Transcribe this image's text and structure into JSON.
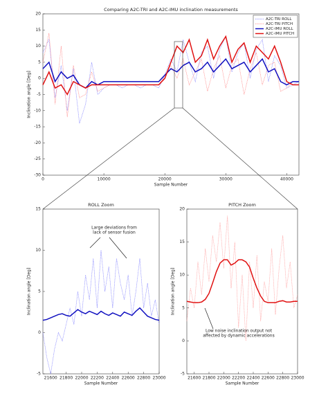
{
  "chart_data": [
    {
      "type": "line",
      "title": "Comparing A2C-TRI and A2C-IMU inclination measurements",
      "xlabel": "Sample Number",
      "ylabel": "Inclination angle [Deg]",
      "x": [
        0,
        1000,
        2000,
        3000,
        4000,
        5000,
        6000,
        7000,
        8000,
        9000,
        10000,
        11000,
        12000,
        13000,
        14000,
        15000,
        16000,
        17000,
        18000,
        19000,
        20000,
        21000,
        22000,
        23000,
        24000,
        25000,
        26000,
        27000,
        28000,
        29000,
        30000,
        31000,
        32000,
        33000,
        34000,
        35000,
        36000,
        37000,
        38000,
        39000,
        40000,
        41000,
        42000
      ],
      "xlim": [
        0,
        42000
      ],
      "ylim": [
        -30,
        20
      ],
      "xticks": [
        0,
        10000,
        20000,
        30000,
        40000
      ],
      "yticks": [
        -30,
        -25,
        -20,
        -15,
        -10,
        -5,
        0,
        5,
        10,
        15,
        20
      ],
      "legend": "upper right",
      "series": [
        {
          "name": "A2C-TRI ROLL",
          "color": "#7b7bff",
          "style": "dotted",
          "values": [
            8,
            12,
            -6,
            4,
            -10,
            3,
            -14,
            -8,
            5,
            -5,
            -3,
            -2,
            -2,
            -3,
            -2,
            -2,
            -3,
            -2,
            -2,
            -3,
            1,
            6,
            2,
            12,
            5,
            -1,
            8,
            10,
            0,
            9,
            13,
            2,
            8,
            11,
            0,
            9,
            12,
            -1,
            7,
            4,
            -3,
            -2,
            -1
          ]
        },
        {
          "name": "A2C-TRI PITCH",
          "color": "#ff8080",
          "style": "dotted",
          "values": [
            5,
            14,
            -8,
            10,
            -12,
            4,
            -6,
            -5,
            2,
            -4,
            -3,
            -2,
            -2,
            -2,
            -2,
            -2,
            -2,
            -2,
            -2,
            -2,
            1,
            4,
            0,
            6,
            -2,
            2,
            6,
            -4,
            3,
            7,
            -3,
            4,
            6,
            -5,
            3,
            8,
            -2,
            4,
            5,
            -4,
            -3,
            -1,
            -1
          ]
        },
        {
          "name": "A2C-IMU ROLL",
          "color": "#1010c0",
          "style": "solid",
          "values": [
            3,
            5,
            -1,
            2,
            0,
            1,
            -2,
            -3,
            -1,
            -2,
            -1,
            -1,
            -1,
            -1,
            -1,
            -1,
            -1,
            -1,
            -1,
            -1,
            1,
            3,
            2,
            4,
            5,
            2,
            3,
            5,
            2,
            4,
            6,
            3,
            4,
            5,
            2,
            4,
            6,
            2,
            3,
            -1,
            -2,
            -1,
            -1
          ]
        },
        {
          "name": "A2C-IMU PITCH",
          "color": "#e01010",
          "style": "solid",
          "values": [
            -2,
            2,
            -3,
            -2,
            -5,
            -1,
            -2,
            -3,
            -2,
            -2,
            -2,
            -2,
            -2,
            -2,
            -2,
            -2,
            -2,
            -2,
            -2,
            -2,
            0,
            5,
            10,
            8,
            12,
            5,
            7,
            12,
            6,
            10,
            13,
            5,
            9,
            11,
            5,
            10,
            8,
            6,
            10,
            5,
            -1,
            -2,
            -2
          ]
        }
      ]
    },
    {
      "type": "line",
      "title": "ROLL Zoom",
      "xlabel": "Sample Number",
      "ylabel": "Inclination angle [Deg]",
      "annotation": [
        "Large deviations from",
        "lack of sensor fusion"
      ],
      "x": [
        21500,
        21550,
        21600,
        21650,
        21700,
        21750,
        21800,
        21850,
        21900,
        21950,
        22000,
        22050,
        22100,
        22150,
        22200,
        22250,
        22300,
        22350,
        22400,
        22450,
        22500,
        22550,
        22600,
        22650,
        22700,
        22750,
        22800,
        22850,
        22900,
        22950,
        23000
      ],
      "xlim": [
        21500,
        23000
      ],
      "ylim": [
        -5,
        15
      ],
      "xticks": [
        21600,
        21800,
        22000,
        22200,
        22400,
        22600,
        22800,
        23000
      ],
      "yticks": [
        -5,
        0,
        5,
        10,
        15
      ],
      "series": [
        {
          "color": "#7b7bff",
          "style": "dotted",
          "values": [
            0,
            -3,
            -5,
            -2,
            0,
            -1,
            1,
            3,
            1,
            5,
            2,
            7,
            4,
            9,
            3,
            10,
            5,
            8,
            3,
            9,
            6,
            4,
            7,
            2,
            5,
            9,
            3,
            6,
            2,
            4,
            1
          ]
        },
        {
          "color": "#1010c0",
          "style": "solid",
          "values": [
            1.5,
            1.6,
            1.8,
            2,
            2.2,
            2.3,
            2.1,
            2,
            2.4,
            2.8,
            2.5,
            2.3,
            2.6,
            2.4,
            2.2,
            2.6,
            2.3,
            2.1,
            2.4,
            2.2,
            2,
            2.5,
            2.3,
            2.1,
            2.6,
            3,
            2.5,
            2,
            1.8,
            1.6,
            1.5
          ]
        }
      ]
    },
    {
      "type": "line",
      "title": "PITCH Zoom",
      "xlabel": "Sample Number",
      "ylabel": "Inclination angle [Deg]",
      "annotation": [
        "Low noise inclination output not",
        "affected by dynamic accelerations"
      ],
      "x": [
        21500,
        21550,
        21600,
        21650,
        21700,
        21750,
        21800,
        21850,
        21900,
        21950,
        22000,
        22050,
        22100,
        22150,
        22200,
        22250,
        22300,
        22350,
        22400,
        22450,
        22500,
        22550,
        22600,
        22650,
        22700,
        22750,
        22800,
        22850,
        22900,
        22950,
        23000
      ],
      "xlim": [
        21500,
        23000
      ],
      "ylim": [
        -5,
        20
      ],
      "xticks": [
        21600,
        21800,
        22000,
        22200,
        22400,
        22600,
        22800,
        23000
      ],
      "yticks": [
        -5,
        0,
        5,
        10,
        15,
        20
      ],
      "series": [
        {
          "color": "#ff9a9a",
          "style": "dotted",
          "values": [
            3,
            8,
            5,
            12,
            7,
            14,
            9,
            16,
            12,
            18,
            11,
            19,
            8,
            15,
            2,
            10,
            0,
            12,
            5,
            13,
            3,
            9,
            6,
            14,
            4,
            11,
            16,
            8,
            12,
            5,
            7
          ]
        },
        {
          "color": "#e01010",
          "style": "solid",
          "values": [
            6,
            5.9,
            5.8,
            5.8,
            5.9,
            6.3,
            7.2,
            8.8,
            10.5,
            11.8,
            12.3,
            12.3,
            11.5,
            11.8,
            12.3,
            12.3,
            12,
            11.2,
            9.5,
            8,
            6.8,
            6,
            5.8,
            5.8,
            5.8,
            6,
            6.1,
            5.9,
            5.9,
            6,
            6
          ]
        }
      ]
    }
  ]
}
